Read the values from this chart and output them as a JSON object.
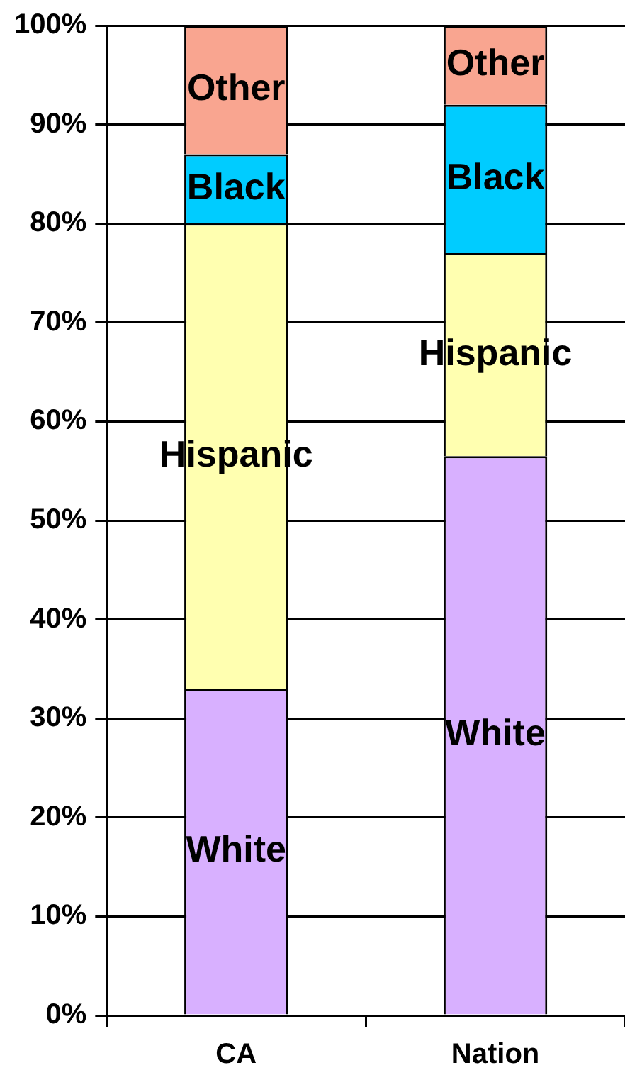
{
  "chart_data": {
    "type": "bar",
    "stacked": true,
    "categories": [
      "CA",
      "Nation"
    ],
    "series": [
      {
        "name": "White",
        "color": "#d8b0ff",
        "values": [
          33,
          56.5
        ]
      },
      {
        "name": "Hispanic",
        "color": "#ffffb0",
        "values": [
          47,
          20.5
        ]
      },
      {
        "name": "Black",
        "color": "#00ccff",
        "values": [
          7,
          15
        ]
      },
      {
        "name": "Other",
        "color": "#f9a590",
        "values": [
          13,
          8
        ]
      }
    ],
    "ylim": [
      0,
      100
    ],
    "yticks": [
      {
        "value": 0,
        "label": "0%"
      },
      {
        "value": 10,
        "label": "10%"
      },
      {
        "value": 20,
        "label": "20%"
      },
      {
        "value": 30,
        "label": "30%"
      },
      {
        "value": 40,
        "label": "40%"
      },
      {
        "value": 50,
        "label": "50%"
      },
      {
        "value": 60,
        "label": "60%"
      },
      {
        "value": 70,
        "label": "70%"
      },
      {
        "value": 80,
        "label": "80%"
      },
      {
        "value": 90,
        "label": "90%"
      },
      {
        "value": 100,
        "label": "100%"
      }
    ],
    "grid": "y",
    "legend": false
  }
}
